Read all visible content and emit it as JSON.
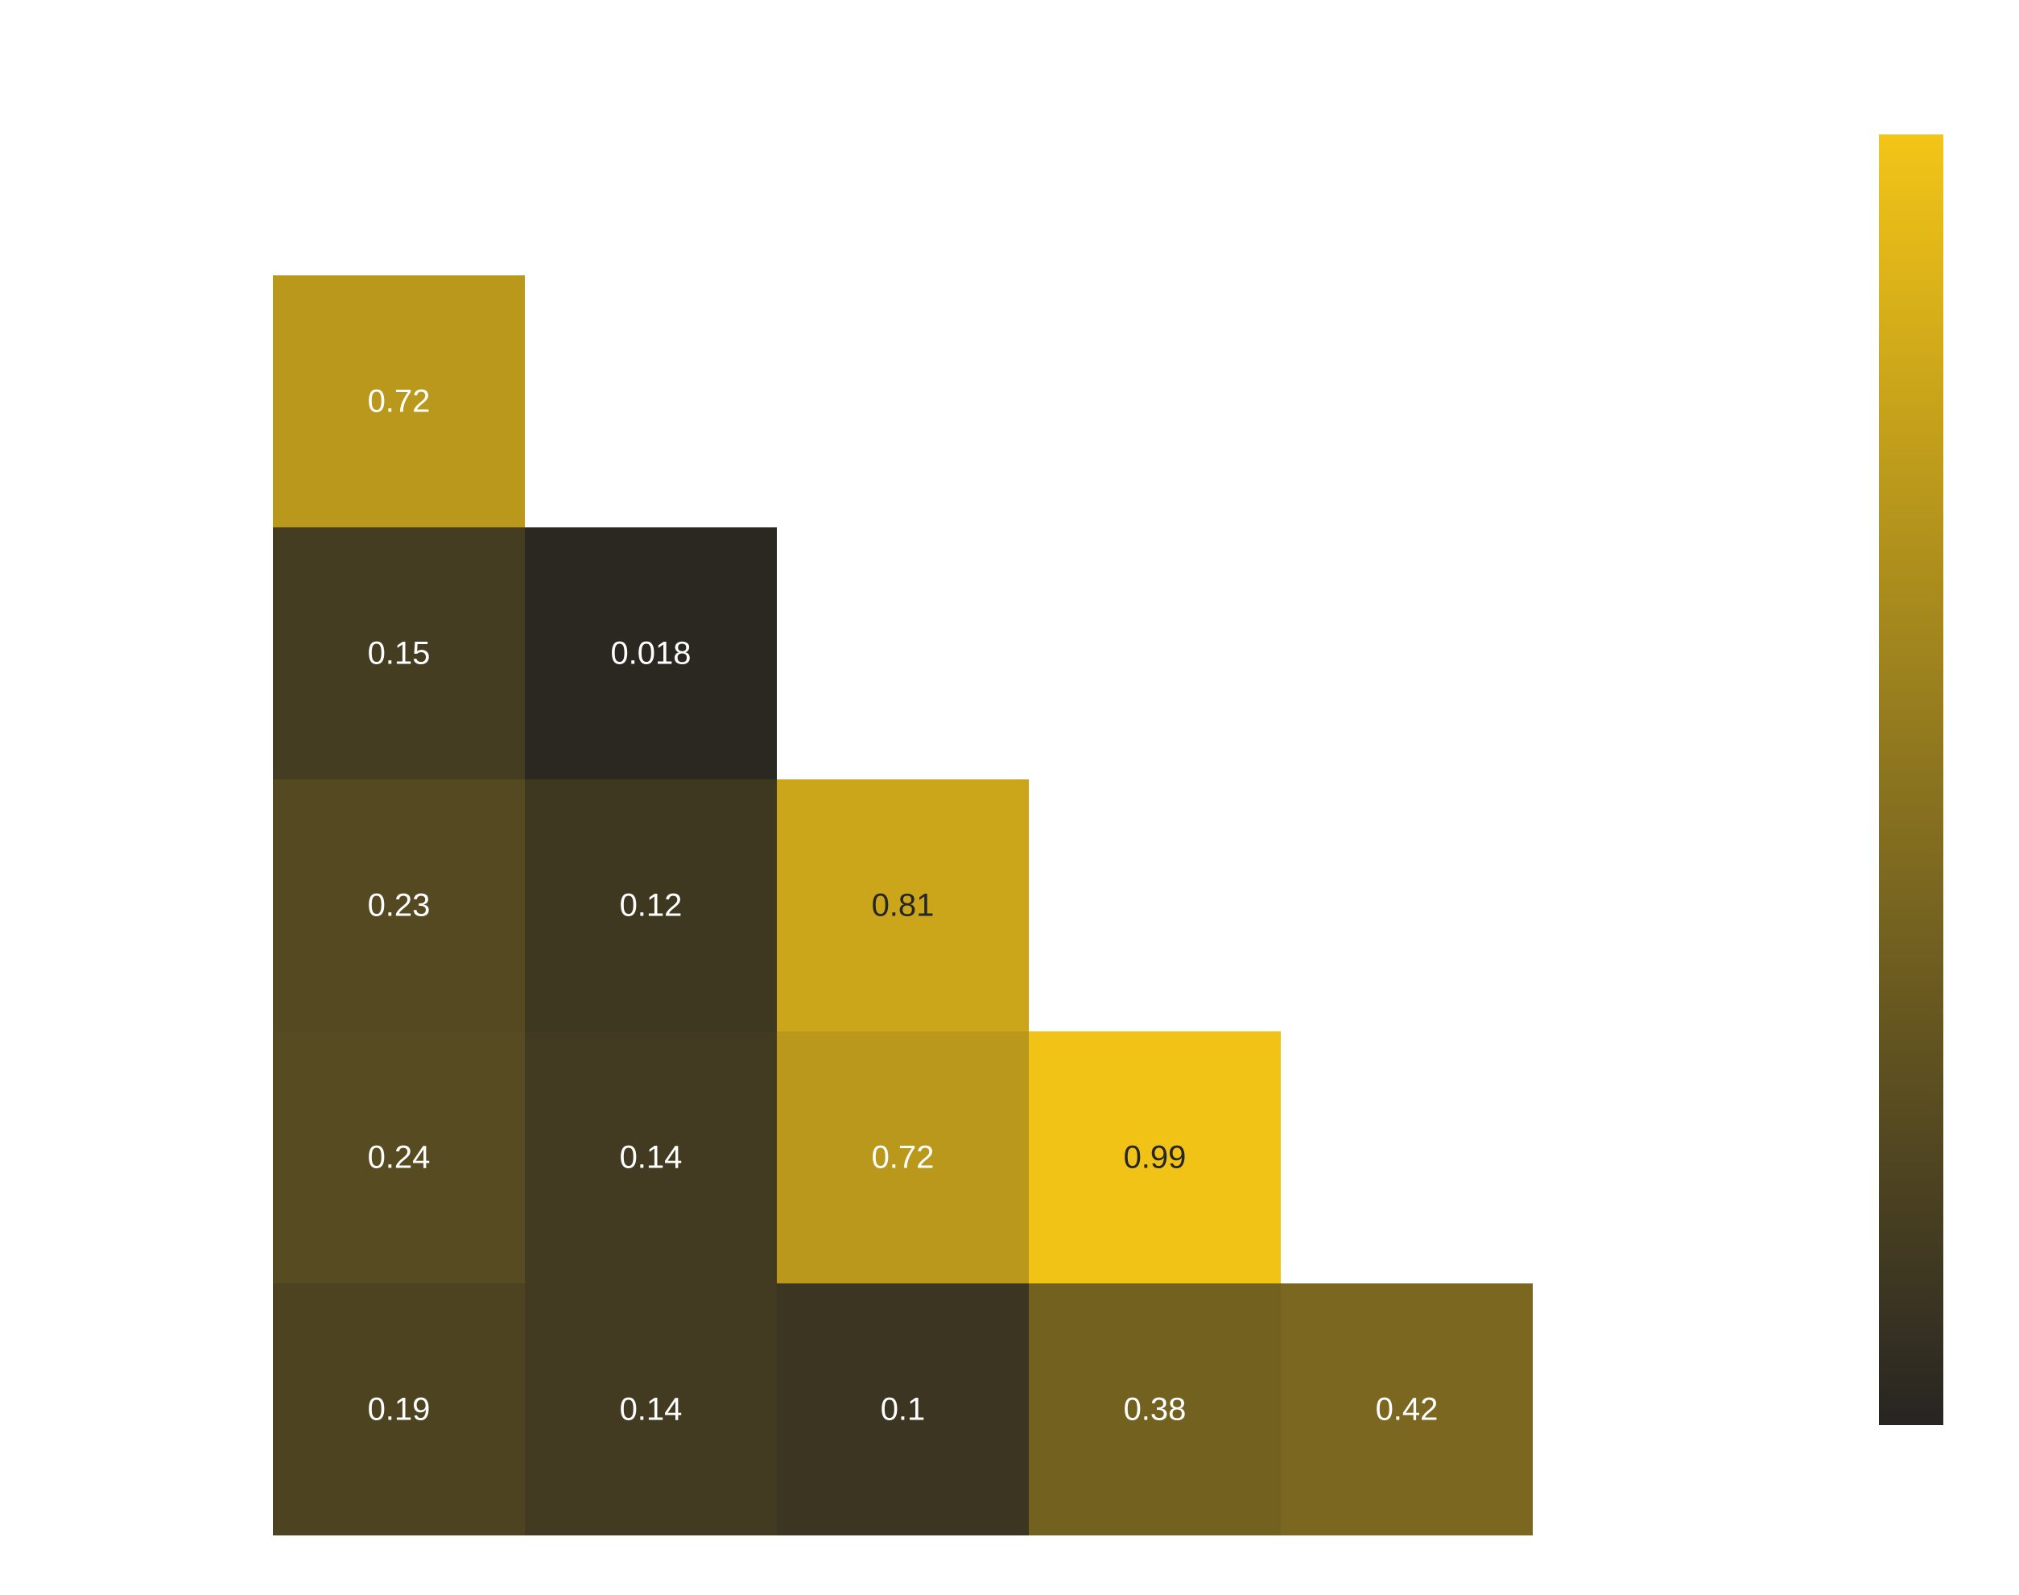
{
  "chart_data": {
    "type": "heatmap",
    "title": "",
    "xlabel": "",
    "ylabel": "",
    "layout": "lower-triangle",
    "rows": [
      {
        "values": [
          0.72
        ],
        "labels": [
          "0.72"
        ]
      },
      {
        "values": [
          0.15,
          0.018
        ],
        "labels": [
          "0.15",
          "0.018"
        ]
      },
      {
        "values": [
          0.23,
          0.12,
          0.81
        ],
        "labels": [
          "0.23",
          "0.12",
          "0.81"
        ]
      },
      {
        "values": [
          0.24,
          0.14,
          0.72,
          0.99
        ],
        "labels": [
          "0.24",
          "0.14",
          "0.72",
          "0.99"
        ]
      },
      {
        "values": [
          0.19,
          0.14,
          0.1,
          0.38,
          0.42
        ],
        "labels": [
          "0.19",
          "0.14",
          "0.1",
          "0.38",
          "0.42"
        ]
      }
    ],
    "value_range": [
      0,
      1
    ],
    "colormap": {
      "low": "#272522",
      "mid": "#8b741f",
      "high": "#f3c517"
    },
    "label_colors": {
      "light": "#ffffff",
      "dark": "#262626"
    },
    "colorbar": {
      "visible": true,
      "placement": "right",
      "tick_labels": []
    },
    "grid": false
  }
}
